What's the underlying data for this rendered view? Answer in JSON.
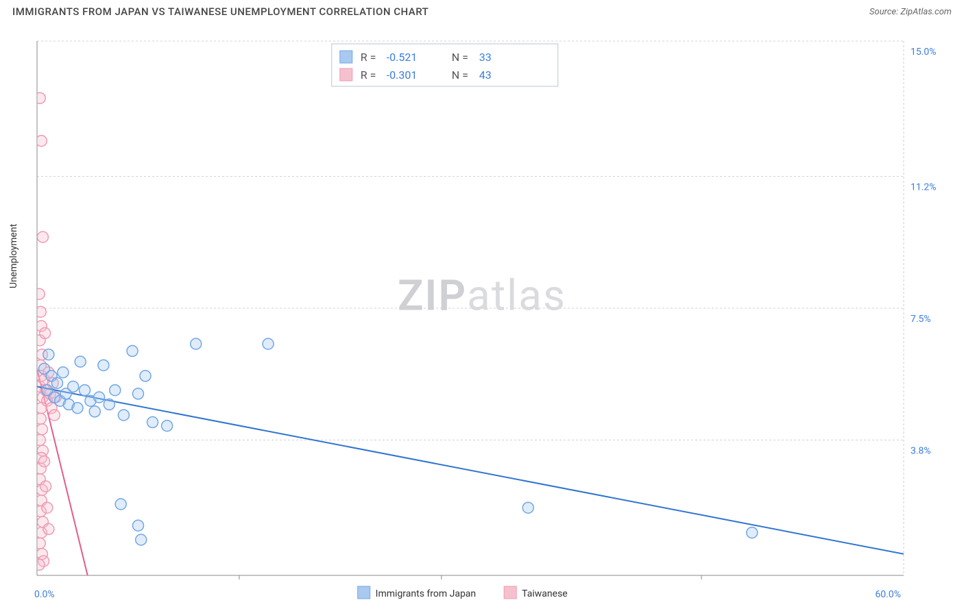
{
  "title": "IMMIGRANTS FROM JAPAN VS TAIWANESE UNEMPLOYMENT CORRELATION CHART",
  "source_label": "Source: ZipAtlas.com",
  "y_axis_label": "Unemployment",
  "watermark": {
    "bold": "ZIP",
    "rest": "atlas"
  },
  "chart": {
    "type": "scatter",
    "x_min": 0.0,
    "x_max": 60.0,
    "y_min": 0.0,
    "y_max": 15.0,
    "x_ticks": [
      0.0,
      60.0
    ],
    "x_tick_labels": [
      "0.0%",
      "60.0%"
    ],
    "x_minor_ticks": [
      14.0,
      28.0,
      46.0
    ],
    "y_ticks": [
      3.8,
      7.5,
      11.2,
      15.0
    ],
    "y_tick_labels": [
      "3.8%",
      "7.5%",
      "11.2%",
      "15.0%"
    ],
    "grid_color": "#d0d0d0",
    "background_color": "#ffffff",
    "axis_color": "#888888",
    "label_color": "#3b7ddd",
    "marker_radius": 8,
    "marker_stroke_width": 1.5,
    "marker_fill_opacity": 0.35,
    "regression_line_width": 2
  },
  "series": [
    {
      "name": "Immigrants from Japan",
      "color_fill": "#a9c9f0",
      "color_stroke": "#6fa6e6",
      "line_color": "#2f74d0",
      "R": "-0.521",
      "N": "33",
      "regression": {
        "x1": 0.0,
        "y1": 5.3,
        "x2": 60.0,
        "y2": 0.6
      },
      "points": [
        [
          0.5,
          5.8
        ],
        [
          0.7,
          5.2
        ],
        [
          0.8,
          6.2
        ],
        [
          1.0,
          5.6
        ],
        [
          1.2,
          5.0
        ],
        [
          1.4,
          5.4
        ],
        [
          1.6,
          4.9
        ],
        [
          1.8,
          5.7
        ],
        [
          2.0,
          5.1
        ],
        [
          2.2,
          4.8
        ],
        [
          2.5,
          5.3
        ],
        [
          2.8,
          4.7
        ],
        [
          3.0,
          6.0
        ],
        [
          3.3,
          5.2
        ],
        [
          3.7,
          4.9
        ],
        [
          4.0,
          4.6
        ],
        [
          4.3,
          5.0
        ],
        [
          4.6,
          5.9
        ],
        [
          5.0,
          4.8
        ],
        [
          5.4,
          5.2
        ],
        [
          6.0,
          4.5
        ],
        [
          6.6,
          6.3
        ],
        [
          7.0,
          5.1
        ],
        [
          7.5,
          5.6
        ],
        [
          8.0,
          4.3
        ],
        [
          9.0,
          4.2
        ],
        [
          11.0,
          6.5
        ],
        [
          16.0,
          6.5
        ],
        [
          5.8,
          2.0
        ],
        [
          7.0,
          1.4
        ],
        [
          7.2,
          1.0
        ],
        [
          34.0,
          1.9
        ],
        [
          49.5,
          1.2
        ]
      ]
    },
    {
      "name": "Taiwanese",
      "color_fill": "#f6c1cf",
      "color_stroke": "#ef9ab2",
      "line_color": "#e75a8b",
      "R": "-0.301",
      "N": "43",
      "regression": {
        "x1": 0.0,
        "y1": 5.8,
        "x2": 3.5,
        "y2": 0.0
      },
      "points": [
        [
          0.2,
          13.4
        ],
        [
          0.3,
          12.2
        ],
        [
          0.4,
          9.5
        ],
        [
          0.15,
          7.9
        ],
        [
          0.25,
          7.4
        ],
        [
          0.3,
          7.0
        ],
        [
          0.2,
          6.6
        ],
        [
          0.35,
          6.2
        ],
        [
          0.25,
          5.9
        ],
        [
          0.3,
          5.6
        ],
        [
          0.2,
          5.3
        ],
        [
          0.4,
          5.0
        ],
        [
          0.3,
          4.7
        ],
        [
          0.25,
          4.4
        ],
        [
          0.35,
          4.1
        ],
        [
          0.2,
          3.8
        ],
        [
          0.4,
          3.5
        ],
        [
          0.3,
          3.3
        ],
        [
          0.25,
          3.0
        ],
        [
          0.2,
          2.7
        ],
        [
          0.35,
          2.4
        ],
        [
          0.3,
          2.1
        ],
        [
          0.25,
          1.8
        ],
        [
          0.4,
          1.5
        ],
        [
          0.3,
          1.2
        ],
        [
          0.2,
          0.9
        ],
        [
          0.35,
          0.6
        ],
        [
          0.5,
          5.5
        ],
        [
          0.6,
          5.2
        ],
        [
          0.7,
          4.9
        ],
        [
          0.8,
          5.7
        ],
        [
          0.9,
          5.1
        ],
        [
          1.0,
          4.7
        ],
        [
          1.1,
          5.4
        ],
        [
          1.2,
          4.5
        ],
        [
          1.3,
          5.0
        ],
        [
          0.5,
          3.2
        ],
        [
          0.6,
          2.5
        ],
        [
          0.7,
          1.9
        ],
        [
          0.8,
          1.3
        ],
        [
          0.45,
          0.4
        ],
        [
          0.55,
          6.8
        ],
        [
          0.15,
          0.3
        ]
      ]
    }
  ],
  "top_legend": {
    "box_stroke": "#b7c6d8",
    "box_fill": "#ffffff",
    "rows": [
      {
        "swatch_fill": "#a9c9f0",
        "swatch_stroke": "#6fa6e6",
        "R_label": "R =",
        "R_val": "-0.521",
        "N_label": "N =",
        "N_val": "33"
      },
      {
        "swatch_fill": "#f6c1cf",
        "swatch_stroke": "#ef9ab2",
        "R_label": "R =",
        "R_val": "-0.301",
        "N_label": "N =",
        "N_val": "43"
      }
    ]
  },
  "bottom_legend": {
    "items": [
      {
        "swatch_fill": "#a9c9f0",
        "swatch_stroke": "#6fa6e6",
        "label": "Immigrants from Japan"
      },
      {
        "swatch_fill": "#f6c1cf",
        "swatch_stroke": "#ef9ab2",
        "label": "Taiwanese"
      }
    ]
  }
}
